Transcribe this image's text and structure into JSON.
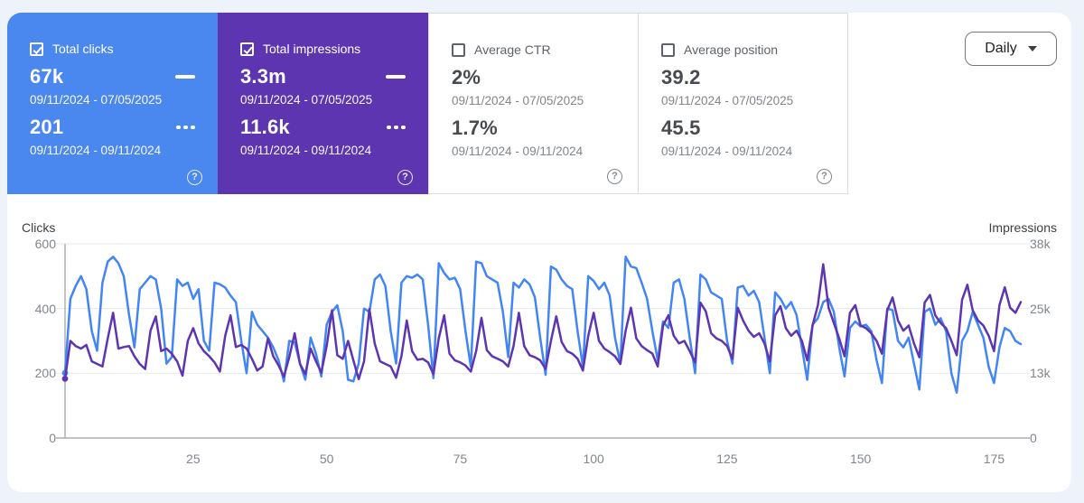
{
  "toolbar": {
    "interval_label": "Daily"
  },
  "cards": [
    {
      "id": "total-clicks",
      "label": "Total clicks",
      "checked": true,
      "background": "#4a87ee",
      "primary_value": "67k",
      "primary_range": "09/11/2024 - 07/05/2025",
      "secondary_value": "201",
      "secondary_range": "09/11/2024 - 09/11/2024"
    },
    {
      "id": "total-impressions",
      "label": "Total impressions",
      "checked": true,
      "background": "#5e35b1",
      "primary_value": "3.3m",
      "primary_range": "09/11/2024 - 07/05/2025",
      "secondary_value": "11.6k",
      "secondary_range": "09/11/2024 - 09/11/2024"
    },
    {
      "id": "average-ctr",
      "label": "Average CTR",
      "checked": false,
      "background": "#ffffff",
      "primary_value": "2%",
      "primary_range": "09/11/2024 - 07/05/2025",
      "secondary_value": "1.7%",
      "secondary_range": "09/11/2024 - 09/11/2024"
    },
    {
      "id": "average-position",
      "label": "Average position",
      "checked": false,
      "background": "#ffffff",
      "primary_value": "39.2",
      "primary_range": "09/11/2024 - 07/05/2025",
      "secondary_value": "45.5",
      "secondary_range": "09/11/2024 - 09/11/2024"
    }
  ],
  "chart_data": {
    "type": "line",
    "grid": true,
    "left_axis": {
      "label": "Clicks",
      "range": [
        0,
        600
      ],
      "ticks": [
        {
          "value": 0,
          "label": "0"
        },
        {
          "value": 200,
          "label": "200"
        },
        {
          "value": 400,
          "label": "400"
        },
        {
          "value": 600,
          "label": "600"
        }
      ]
    },
    "right_axis": {
      "label": "Impressions",
      "range": [
        0,
        38000
      ],
      "ticks": [
        {
          "value": 0,
          "label": "0"
        },
        {
          "value": 13000,
          "label": "13k"
        },
        {
          "value": 25000,
          "label": "25k"
        },
        {
          "value": 38000,
          "label": "38k"
        }
      ]
    },
    "x_axis": {
      "range": [
        1,
        180
      ],
      "ticks": [
        25,
        50,
        75,
        100,
        125,
        150,
        175
      ]
    },
    "series": [
      {
        "name": "Clicks",
        "axis": "left",
        "color": "#4285f4",
        "values": [
          201,
          430,
          470,
          500,
          460,
          330,
          270,
          480,
          545,
          560,
          540,
          500,
          380,
          280,
          460,
          480,
          500,
          490,
          400,
          230,
          250,
          490,
          470,
          480,
          430,
          460,
          300,
          270,
          480,
          475,
          465,
          440,
          420,
          300,
          200,
          390,
          350,
          330,
          310,
          280,
          240,
          175,
          300,
          295,
          230,
          180,
          310,
          260,
          190,
          350,
          390,
          410,
          330,
          180,
          175,
          230,
          400,
          390,
          490,
          505,
          470,
          330,
          230,
          480,
          500,
          495,
          505,
          490,
          350,
          185,
          540,
          510,
          490,
          495,
          460,
          330,
          220,
          545,
          540,
          500,
          490,
          480,
          390,
          250,
          480,
          465,
          490,
          475,
          435,
          310,
          195,
          530,
          520,
          490,
          470,
          460,
          330,
          220,
          500,
          485,
          460,
          480,
          440,
          310,
          230,
          560,
          530,
          525,
          480,
          430,
          330,
          240,
          360,
          340,
          480,
          490,
          430,
          310,
          200,
          505,
          490,
          450,
          440,
          430,
          300,
          230,
          465,
          470,
          440,
          455,
          420,
          310,
          200,
          450,
          430,
          400,
          420,
          380,
          280,
          180,
          350,
          370,
          420,
          430,
          390,
          280,
          190,
          340,
          360,
          345,
          350,
          330,
          240,
          170,
          400,
          395,
          300,
          280,
          310,
          230,
          150,
          390,
          400,
          350,
          370,
          330,
          200,
          140,
          300,
          330,
          390,
          350,
          310,
          220,
          170,
          280,
          340,
          330,
          300,
          290
        ]
      },
      {
        "name": "Impressions",
        "axis": "right",
        "color": "#5e35b1",
        "values": [
          11600,
          19000,
          18000,
          17500,
          18200,
          15000,
          14500,
          14000,
          19500,
          24500,
          17500,
          17800,
          18000,
          16000,
          14500,
          13500,
          21000,
          23800,
          17000,
          17500,
          16500,
          15000,
          12200,
          19000,
          21500,
          18500,
          17000,
          16000,
          14800,
          13000,
          20000,
          24000,
          17800,
          18200,
          17500,
          15500,
          13200,
          14000,
          19500,
          16000,
          14200,
          12000,
          15800,
          20500,
          14500,
          12500,
          17500,
          15000,
          12800,
          18000,
          25000,
          16200,
          15500,
          19000,
          15200,
          11500,
          15000,
          25200,
          18500,
          15000,
          14500,
          14000,
          11800,
          16000,
          23000,
          17000,
          15300,
          15500,
          14800,
          12500,
          19500,
          24000,
          16500,
          15200,
          14800,
          14200,
          13000,
          17000,
          23500,
          17200,
          16000,
          15500,
          15000,
          14000,
          18000,
          24500,
          18000,
          16200,
          15800,
          15200,
          13500,
          19000,
          23800,
          18800,
          17000,
          16500,
          15500,
          13200,
          20000,
          24500,
          19000,
          17500,
          16800,
          16000,
          14500,
          21000,
          25500,
          19500,
          18000,
          17200,
          16500,
          14000,
          22000,
          24000,
          20000,
          18500,
          19000,
          17000,
          14800,
          26500,
          24800,
          20500,
          19500,
          19000,
          18000,
          15500,
          25500,
          23000,
          21000,
          19800,
          20500,
          18500,
          15000,
          24000,
          25800,
          21500,
          20000,
          21000,
          19000,
          15200,
          22000,
          26000,
          34000,
          25500,
          22500,
          19500,
          16000,
          24500,
          26000,
          22000,
          21500,
          20500,
          19000,
          16500,
          25000,
          27500,
          23000,
          21000,
          22000,
          18500,
          15800,
          26500,
          28000,
          24000,
          22500,
          21500,
          19000,
          16200,
          27000,
          30000,
          25000,
          23000,
          22000,
          20000,
          17000,
          26000,
          29500,
          25500,
          24500,
          26600
        ]
      }
    ]
  }
}
